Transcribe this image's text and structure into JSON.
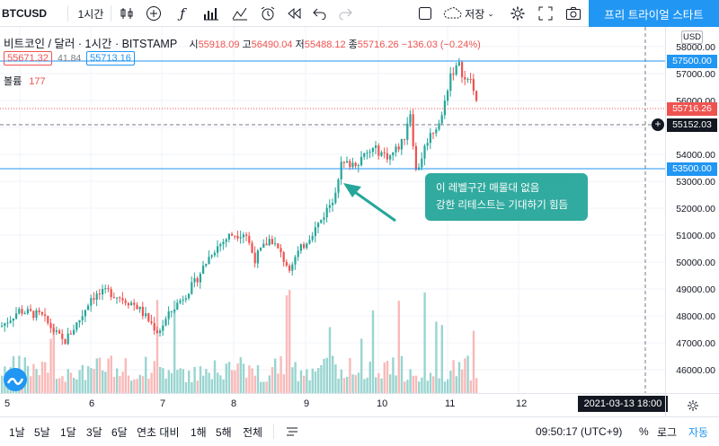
{
  "toolbar": {
    "symbol": "BTCUSD",
    "interval": "1시간",
    "save_label": "저장",
    "trial_button": "프리 트라이얼 스타트",
    "icons": [
      "candles-icon",
      "plus-circle-icon",
      "fx-icon",
      "indicators-icon",
      "templates-icon",
      "alarm-icon",
      "replay-icon",
      "undo-icon",
      "redo-icon",
      "square-icon",
      "cloud-icon",
      "settings-icon",
      "fullscreen-icon",
      "camera-icon"
    ]
  },
  "legend": {
    "title": "비트코인 / 달러 · 1시간 · BITSTAMP",
    "open_label": "시",
    "open": "55918.09",
    "high_label": "고",
    "high": "56490.04",
    "low_label": "저",
    "low": "55488.12",
    "close_label": "종",
    "close": "55716.26",
    "change": "−136.03 (−0.24%)",
    "bid": "55671.32",
    "spread": "41.84",
    "ask": "55713.16",
    "volume_label": "볼륨",
    "volume_value": "177"
  },
  "price_axis": {
    "currency": "USD",
    "labels": [
      "58000.00",
      "57000.00",
      "56000.00",
      "55000.00",
      "54000.00",
      "53000.00",
      "52000.00",
      "51000.00",
      "50000.00",
      "49000.00",
      "48000.00",
      "47000.00",
      "46000.00"
    ],
    "tag_57500": "57500.00",
    "tag_last": "55716.26",
    "tag_cross": "55152.03",
    "tag_53500": "53500.00"
  },
  "time_axis": {
    "labels": [
      "5",
      "6",
      "7",
      "8",
      "9",
      "10",
      "11",
      "12"
    ],
    "cursor_label": "2021-03-13   18:00"
  },
  "annotation": {
    "line1": "이 레벨구간 매물대 없음",
    "line2": "강한 리테스트는 기대하기 힘듬"
  },
  "bottom_bar": {
    "ranges": [
      "1날",
      "5날",
      "1달",
      "3달",
      "6달",
      "연초 대비",
      "1해",
      "5해",
      "전체"
    ],
    "clock": "09:50:17 (UTC+9)",
    "percent": "%",
    "log": "로그",
    "auto": "자동"
  },
  "colors": {
    "up": "#26a69a",
    "down": "#ef5350",
    "hline": "#2196f3",
    "accent": "#2196f3"
  }
}
